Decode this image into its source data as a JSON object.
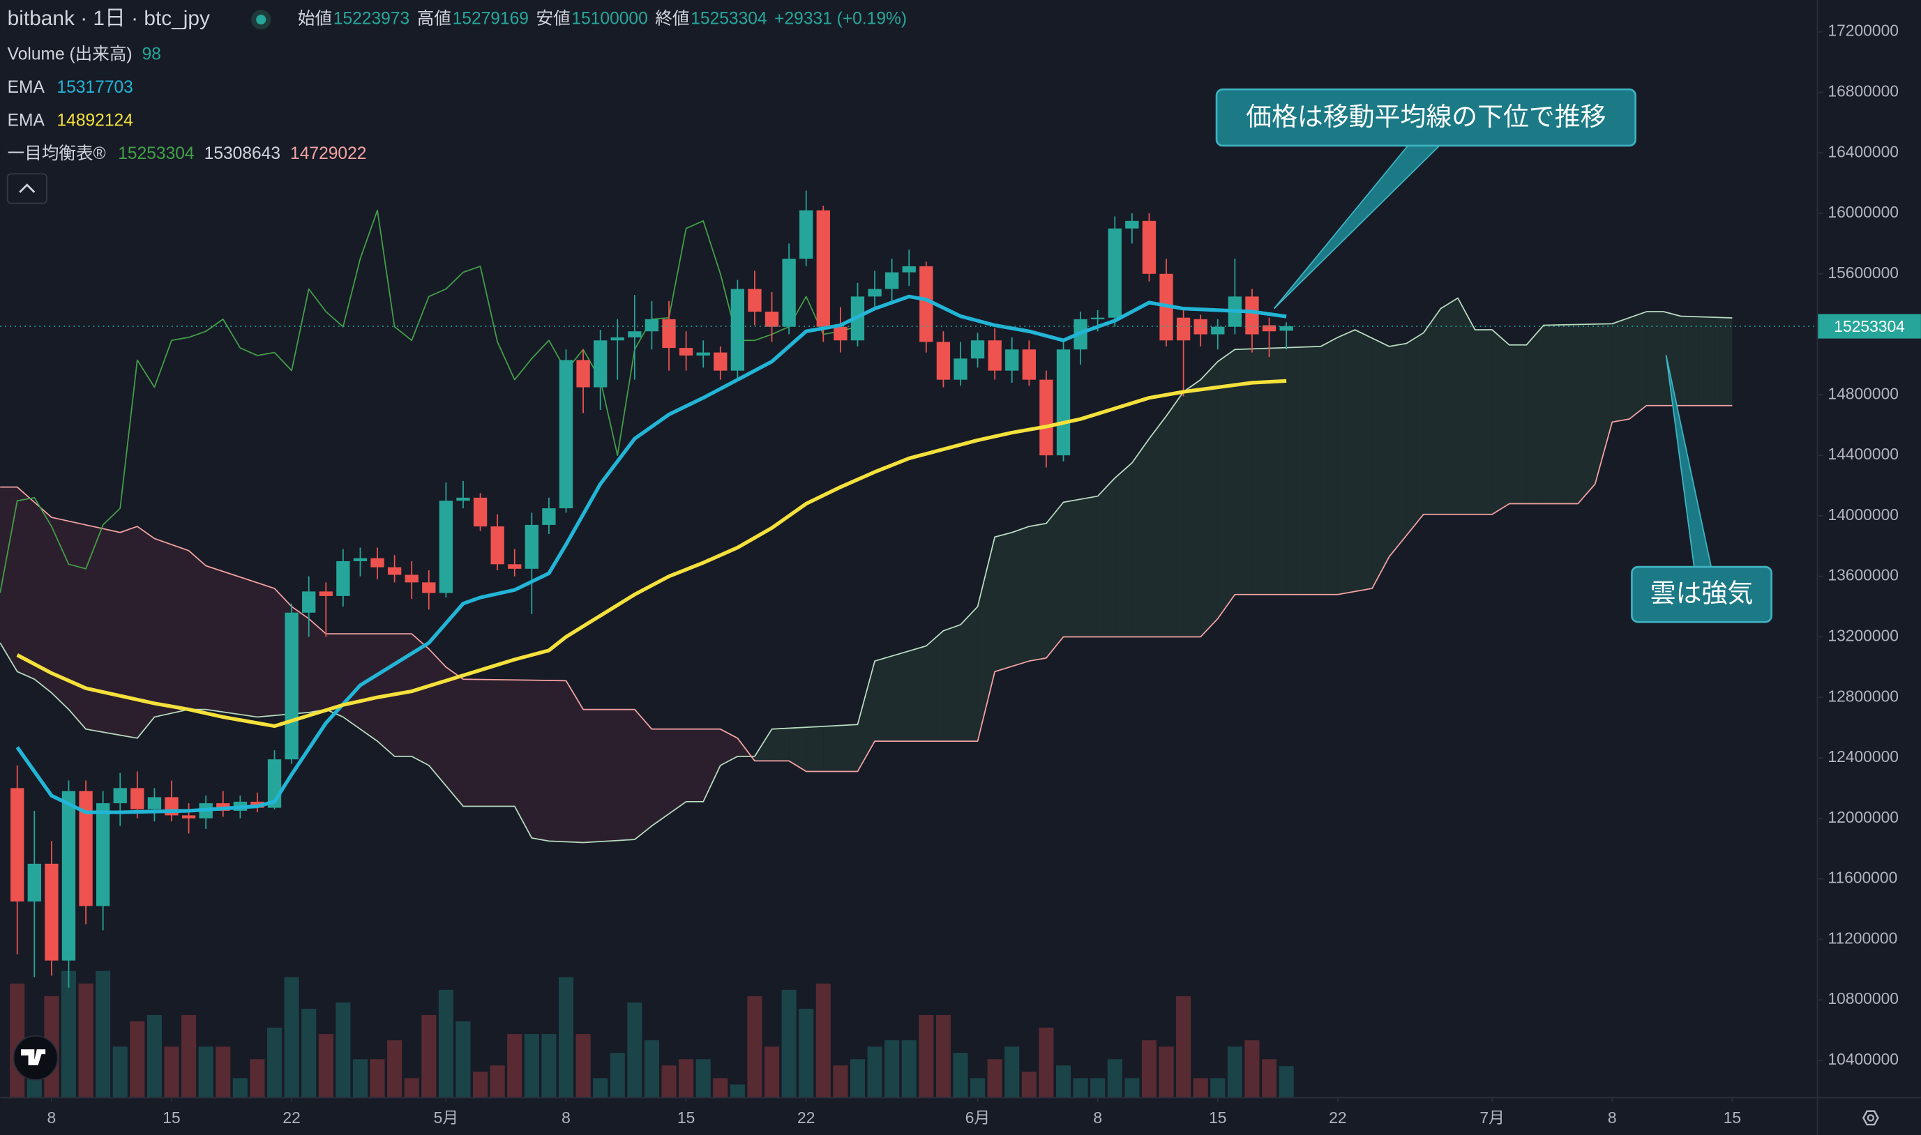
{
  "chart_data": {
    "type": "candlestick",
    "header": {
      "symbol": "bitbank · 1日 · btc_jpy",
      "open_label": "始値",
      "high_label": "高値",
      "low_label": "安値",
      "close_label": "終値",
      "change": "+29331 (+0.19%)"
    },
    "colors": {
      "up": "#26a69a",
      "down": "#ef5350"
    },
    "x": [
      6,
      7,
      8,
      9,
      10,
      11,
      12,
      13,
      14,
      15,
      16,
      17,
      18,
      19,
      20,
      21,
      22,
      23,
      24,
      25,
      26,
      27,
      28,
      29,
      30,
      31,
      32,
      33,
      34,
      35,
      36,
      37,
      38,
      39,
      40,
      41,
      42,
      43,
      44,
      45,
      46,
      47,
      48,
      49,
      50,
      51,
      52,
      53,
      54,
      55,
      56,
      57,
      58,
      59,
      60,
      61,
      62,
      63,
      64,
      65,
      66,
      67,
      68,
      69,
      70,
      71,
      72,
      73,
      74,
      75,
      76,
      77,
      78,
      79,
      80
    ],
    "open": [
      12200000,
      11450000,
      11700000,
      11060000,
      12180000,
      11420000,
      12100000,
      12200000,
      12060000,
      12140000,
      12020000,
      12000000,
      12100000,
      12050000,
      12110000,
      12070000,
      12390000,
      13360000,
      13500000,
      13470000,
      13700000,
      13720000,
      13660000,
      13610000,
      13560000,
      13490000,
      14100000,
      14120000,
      13930000,
      13680000,
      13650000,
      13940000,
      14050000,
      15030000,
      14850000,
      15160000,
      15180000,
      15220000,
      15300000,
      15110000,
      15060000,
      15080000,
      14960000,
      15500000,
      15350000,
      15250000,
      15700000,
      16020000,
      15250000,
      15160000,
      15450000,
      15500000,
      15610000,
      15650000,
      15150000,
      14900000,
      15040000,
      15160000,
      14960000,
      15100000,
      14900000,
      14400000,
      15100000,
      15300000,
      15310000,
      15900000,
      15950000,
      15600000,
      15310000,
      15300000,
      15200000,
      15250000,
      15450000,
      15260000,
      15223973
    ],
    "high": [
      12350000,
      12050000,
      11850000,
      12250000,
      12250000,
      12180000,
      12300000,
      12310000,
      12200000,
      12250000,
      12100000,
      12150000,
      12180000,
      12150000,
      12170000,
      12450000,
      13420000,
      13600000,
      13560000,
      13780000,
      13790000,
      13790000,
      13740000,
      13700000,
      13640000,
      14220000,
      14230000,
      14150000,
      14010000,
      13780000,
      14020000,
      14120000,
      15100000,
      15100000,
      15230000,
      15300000,
      15460000,
      15420000,
      15420000,
      15220000,
      15160000,
      15120000,
      15560000,
      15620000,
      15480000,
      15800000,
      16150000,
      16050000,
      15380000,
      15540000,
      15620000,
      15700000,
      15760000,
      15680000,
      15220000,
      15150000,
      15210000,
      15240000,
      15180000,
      15160000,
      14960000,
      15160000,
      15350000,
      15360000,
      15980000,
      16000000,
      16000000,
      15700000,
      15360000,
      15330000,
      15300000,
      15700000,
      15500000,
      15310000,
      15279169
    ],
    "low": [
      11100000,
      10950000,
      10960000,
      10880000,
      11300000,
      11260000,
      11950000,
      12000000,
      11980000,
      11980000,
      11900000,
      11930000,
      12010000,
      12000000,
      12040000,
      12060000,
      12360000,
      13200000,
      13200000,
      13400000,
      13600000,
      13580000,
      13560000,
      13450000,
      13380000,
      13460000,
      14050000,
      13900000,
      13640000,
      13600000,
      13350000,
      13880000,
      14020000,
      14680000,
      14700000,
      14900000,
      14900000,
      15100000,
      14960000,
      14960000,
      14980000,
      14900000,
      14900000,
      15260000,
      15150000,
      15200000,
      15650000,
      15150000,
      15080000,
      15120000,
      15380000,
      15420000,
      15520000,
      15080000,
      14850000,
      14860000,
      14980000,
      14900000,
      14880000,
      14860000,
      14320000,
      14360000,
      15000000,
      15220000,
      15250000,
      15800000,
      15550000,
      15120000,
      14790000,
      15120000,
      15100000,
      15200000,
      15080000,
      15050000,
      15100000
    ],
    "close": [
      11450000,
      11700000,
      11060000,
      12180000,
      11420000,
      12100000,
      12200000,
      12060000,
      12140000,
      12020000,
      12000000,
      12100000,
      12050000,
      12110000,
      12070000,
      12390000,
      13360000,
      13500000,
      13470000,
      13700000,
      13720000,
      13660000,
      13610000,
      13560000,
      13490000,
      14100000,
      14120000,
      13930000,
      13680000,
      13650000,
      13940000,
      14050000,
      15030000,
      14850000,
      15160000,
      15180000,
      15220000,
      15300000,
      15110000,
      15060000,
      15080000,
      14960000,
      15500000,
      15350000,
      15250000,
      15700000,
      16020000,
      15250000,
      15160000,
      15450000,
      15500000,
      15610000,
      15650000,
      15150000,
      14900000,
      15040000,
      15160000,
      14960000,
      15100000,
      14900000,
      14400000,
      15100000,
      15300000,
      15310000,
      15900000,
      15950000,
      15600000,
      15160000,
      15160000,
      15200000,
      15250000,
      15450000,
      15200000,
      15220000,
      15253304
    ],
    "volume": {
      "name": "Volume (出来高)",
      "values": [
        360,
        160,
        320,
        400,
        360,
        400,
        160,
        240,
        260,
        160,
        260,
        160,
        160,
        60,
        120,
        220,
        380,
        280,
        200,
        300,
        120,
        120,
        180,
        60,
        260,
        340,
        240,
        80,
        100,
        200,
        200,
        200,
        380,
        200,
        60,
        140,
        300,
        180,
        100,
        120,
        120,
        60,
        40,
        320,
        160,
        340,
        280,
        360,
        100,
        120,
        160,
        180,
        180,
        260,
        260,
        140,
        60,
        120,
        160,
        80,
        220,
        100,
        60,
        60,
        120,
        60,
        180,
        160,
        320,
        60,
        60,
        160,
        180,
        120,
        98
      ]
    },
    "series": [
      {
        "name": "EMA",
        "color": "#22b5d6",
        "x": [
          6,
          8,
          10,
          12,
          16,
          20,
          21,
          22,
          24,
          26,
          28,
          30,
          32,
          33,
          35,
          37,
          38,
          40,
          42,
          44,
          46,
          48,
          50,
          52,
          54,
          56,
          58,
          59,
          61,
          63,
          65,
          67,
          68,
          70,
          72,
          74,
          76,
          78,
          80
        ],
        "values": [
          12470000,
          12150000,
          12040000,
          12040000,
          12050000,
          12080000,
          12110000,
          12290000,
          12630000,
          12880000,
          13020000,
          13160000,
          13420000,
          13460000,
          13510000,
          13620000,
          13810000,
          14210000,
          14510000,
          14670000,
          14780000,
          14900000,
          15020000,
          15220000,
          15260000,
          15370000,
          15450000,
          15430000,
          15320000,
          15260000,
          15220000,
          15160000,
          15210000,
          15290000,
          15410000,
          15370000,
          15360000,
          15350000,
          15317703
        ]
      },
      {
        "name": "EMA",
        "color": "#f5e13c",
        "x": [
          6,
          8,
          10,
          12,
          14,
          16,
          18,
          20,
          21,
          23,
          25,
          27,
          29,
          31,
          33,
          35,
          37,
          38,
          40,
          42,
          44,
          46,
          48,
          50,
          52,
          54,
          56,
          58,
          60,
          62,
          64,
          66,
          68,
          70,
          72,
          74,
          76,
          78,
          80
        ],
        "values": [
          13080000,
          12960000,
          12860000,
          12810000,
          12760000,
          12720000,
          12670000,
          12630000,
          12610000,
          12680000,
          12750000,
          12800000,
          12840000,
          12910000,
          12980000,
          13050000,
          13110000,
          13200000,
          13340000,
          13480000,
          13600000,
          13690000,
          13790000,
          13920000,
          14080000,
          14190000,
          14290000,
          14380000,
          14440000,
          14500000,
          14550000,
          14590000,
          14640000,
          14710000,
          14780000,
          14820000,
          14850000,
          14880000,
          14892124
        ]
      }
    ],
    "ichimoku": {
      "name": "一目均衡表®",
      "fill_up": "#1e2c2e",
      "fill_down": "#2c1f2d",
      "lagging": {
        "color": "#43a047",
        "x": [
          5,
          6,
          7,
          8,
          9,
          10,
          11,
          12,
          13,
          14,
          15,
          16,
          17,
          18,
          19,
          20,
          21,
          22,
          23,
          24,
          25,
          26,
          27,
          28,
          29,
          30,
          31,
          32,
          33,
          34,
          35,
          36,
          37,
          38,
          39,
          40,
          41,
          42,
          43,
          44,
          45,
          46,
          47,
          48,
          49,
          50,
          51,
          52,
          53,
          54,
          55
        ],
        "values": [
          13490000,
          14100000,
          14120000,
          13930000,
          13680000,
          13650000,
          13940000,
          14050000,
          15030000,
          14850000,
          15160000,
          15180000,
          15220000,
          15300000,
          15110000,
          15060000,
          15080000,
          14960000,
          15500000,
          15350000,
          15250000,
          15700000,
          16020000,
          15250000,
          15160000,
          15450000,
          15500000,
          15610000,
          15650000,
          15150000,
          14900000,
          15040000,
          15160000,
          14960000,
          15100000,
          14900000,
          14400000,
          15100000,
          15300000,
          15310000,
          15900000,
          15950000,
          15600000,
          15160000,
          15160000,
          15200000,
          15250000,
          15450000,
          15200000,
          15220000,
          15253304
        ]
      },
      "span_a": {
        "color": "#b9dcc0",
        "x": [
          5,
          6,
          7,
          8,
          9,
          10,
          12,
          13,
          14,
          16,
          17,
          20,
          23,
          24,
          25,
          27,
          28,
          29,
          30,
          32,
          35,
          36,
          37,
          39,
          42,
          43,
          45,
          46,
          47,
          48,
          49,
          50,
          55,
          56,
          59,
          60,
          61,
          62,
          63,
          64,
          65,
          66,
          67,
          69,
          70,
          71,
          72,
          73,
          74,
          75,
          76,
          77,
          82,
          83,
          84,
          86,
          87,
          88,
          89,
          90,
          91,
          92,
          93,
          94,
          95,
          99,
          100,
          101,
          102,
          103,
          106
        ],
        "values": [
          13160000,
          12970000,
          12920000,
          12830000,
          12720000,
          12590000,
          12550000,
          12530000,
          12670000,
          12720000,
          12720000,
          12670000,
          12700000,
          12720000,
          12670000,
          12510000,
          12410000,
          12410000,
          12350000,
          12080000,
          12080000,
          11870000,
          11850000,
          11840000,
          11860000,
          11950000,
          12110000,
          12110000,
          12350000,
          12410000,
          12410000,
          12590000,
          12620000,
          13040000,
          13140000,
          13240000,
          13280000,
          13400000,
          13860000,
          13890000,
          13930000,
          13950000,
          14090000,
          14130000,
          14250000,
          14350000,
          14510000,
          14660000,
          14820000,
          14900000,
          15020000,
          15100000,
          15120000,
          15180000,
          15230000,
          15120000,
          15140000,
          15210000,
          15370000,
          15440000,
          15230000,
          15230000,
          15130000,
          15130000,
          15260000,
          15270000,
          15310000,
          15350000,
          15350000,
          15320000,
          15308643
        ]
      },
      "span_b": {
        "color": "#f4a3a3",
        "x": [
          5,
          6,
          7,
          8,
          12,
          13,
          14,
          16,
          17,
          21,
          22,
          23,
          24,
          29,
          30,
          31,
          32,
          38,
          39,
          42,
          43,
          47,
          48,
          49,
          51,
          52,
          55,
          56,
          62,
          63,
          65,
          66,
          67,
          75,
          76,
          77,
          83,
          85,
          86,
          88,
          92,
          93,
          97,
          98,
          99,
          100,
          101,
          106
        ],
        "values": [
          14190000,
          14190000,
          14090000,
          13990000,
          13890000,
          13930000,
          13850000,
          13770000,
          13670000,
          13520000,
          13400000,
          13320000,
          13220000,
          13220000,
          13120000,
          13000000,
          12920000,
          12910000,
          12720000,
          12720000,
          12590000,
          12590000,
          12530000,
          12380000,
          12380000,
          12310000,
          12310000,
          12510000,
          12510000,
          12970000,
          13040000,
          13060000,
          13200000,
          13200000,
          13320000,
          13480000,
          13480000,
          13520000,
          13730000,
          14010000,
          14010000,
          14080000,
          14080000,
          14210000,
          14620000,
          14640000,
          14729022,
          14729022
        ]
      }
    },
    "xlim": [
      5,
      111
    ],
    "xticks": [
      8,
      15,
      22,
      {
        "value": 31,
        "label": "5月"
      },
      {
        "value": 38,
        "label": "8"
      },
      {
        "value": 45,
        "label": "15"
      },
      {
        "value": 52,
        "label": "22"
      },
      {
        "value": 62,
        "label": "6月"
      },
      {
        "value": 69,
        "label": "8"
      },
      {
        "value": 76,
        "label": "15"
      },
      {
        "value": 83,
        "label": "22"
      },
      {
        "value": 92,
        "label": "7月"
      },
      {
        "value": 99,
        "label": "8"
      },
      {
        "value": 106,
        "label": "15"
      }
    ],
    "ylim": [
      10157350,
      17410470
    ],
    "yticks": [
      17200000,
      16800000,
      16400000,
      16000000,
      15600000,
      15200000,
      14800000,
      14400000,
      14000000,
      13600000,
      13200000,
      12800000,
      12400000,
      12000000,
      11600000,
      11200000,
      10800000,
      10400000
    ],
    "annotations": [
      {
        "text": "価格は移動平均線の下位で推移"
      },
      {
        "text": "雲は強気"
      }
    ]
  }
}
